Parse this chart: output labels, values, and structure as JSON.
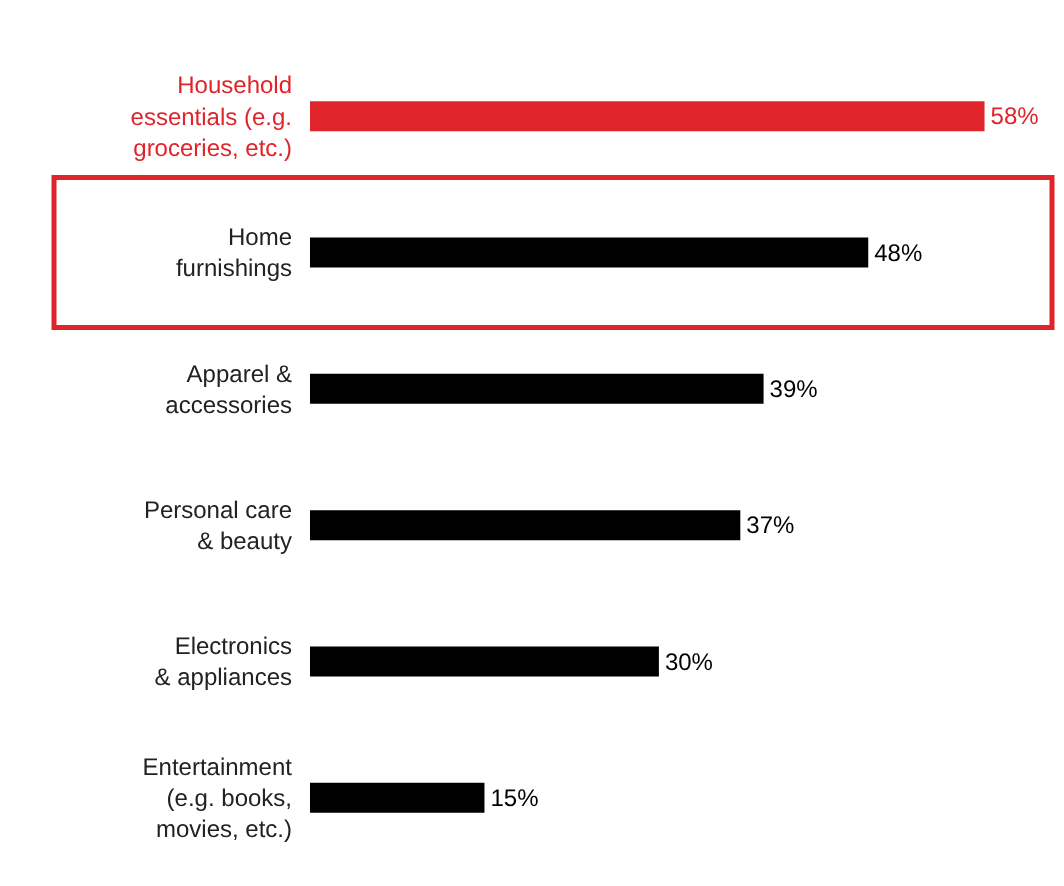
{
  "chart_data": {
    "type": "bar",
    "orientation": "horizontal",
    "categories": [
      "Household\nessentials (e.g.\ngroceries, etc.)",
      "Home\nfurnishings",
      "Apparel &\naccessories",
      "Personal care\n& beauty",
      "Electronics\n& appliances",
      "Entertainment\n(e.g. books,\nmovies, etc.)"
    ],
    "values": [
      58,
      48,
      39,
      37,
      30,
      15
    ],
    "colors": [
      "#e0242b",
      "#000000",
      "#000000",
      "#000000",
      "#000000",
      "#000000"
    ],
    "value_labels": [
      "58%",
      "48%",
      "39%",
      "37%",
      "30%",
      "15%"
    ]
  }
}
